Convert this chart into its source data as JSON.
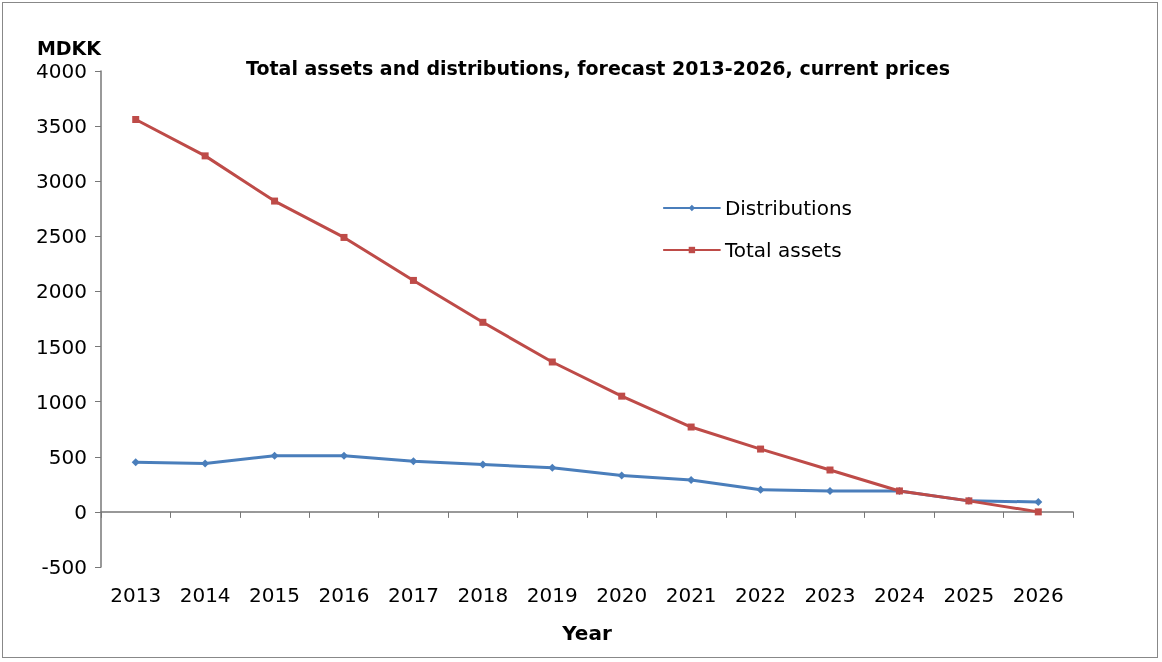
{
  "chart_data": {
    "type": "line",
    "title": "Total assets and distributions, forecast 2013-2026, current prices",
    "xlabel": "Year",
    "ylabel": "MDKK",
    "categories": [
      "2013",
      "2014",
      "2015",
      "2016",
      "2017",
      "2018",
      "2019",
      "2020",
      "2021",
      "2022",
      "2023",
      "2024",
      "2025",
      "2026"
    ],
    "series": [
      {
        "name": "Distributions",
        "color": "#4a7ebb",
        "marker": "diamond",
        "values": [
          450,
          440,
          510,
          510,
          460,
          430,
          400,
          330,
          290,
          200,
          190,
          190,
          100,
          90
        ]
      },
      {
        "name": "Total assets",
        "color": "#be4b48",
        "marker": "square",
        "values": [
          3560,
          3230,
          2820,
          2490,
          2100,
          1720,
          1360,
          1050,
          770,
          570,
          380,
          190,
          100,
          0
        ]
      }
    ],
    "ylim": [
      -500,
      4000
    ],
    "yticks": [
      -500,
      0,
      500,
      1000,
      1500,
      2000,
      2500,
      3000,
      3500,
      4000
    ],
    "legend": "right",
    "line_style": "solid"
  }
}
